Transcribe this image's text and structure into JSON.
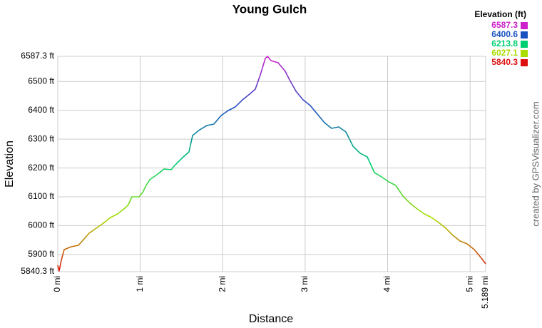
{
  "chart_data": {
    "type": "line",
    "title": "Young Gulch",
    "x_label": "Distance",
    "y_label": "Elevation",
    "credit": "created by GPSVisualizer.com",
    "legend_title": "Elevation (ft)",
    "color_scale": [
      {
        "value": 6587.3,
        "color": "#cc22cc"
      },
      {
        "value": 6400.6,
        "color": "#1a53c0"
      },
      {
        "value": 6213.8,
        "color": "#00d070"
      },
      {
        "value": 6027.1,
        "color": "#aadd00"
      },
      {
        "value": 5840.3,
        "color": "#dd1111"
      }
    ],
    "x": [
      0,
      0.017,
      0.043,
      0.078,
      0.164,
      0.251,
      0.32,
      0.381,
      0.467,
      0.554,
      0.64,
      0.726,
      0.813,
      0.856,
      0.899,
      0.986,
      1.029,
      1.072,
      1.116,
      1.202,
      1.289,
      1.375,
      1.418,
      1.505,
      1.591,
      1.635,
      1.721,
      1.808,
      1.894,
      1.981,
      2.067,
      2.153,
      2.24,
      2.326,
      2.396,
      2.456,
      2.517,
      2.543,
      2.586,
      2.672,
      2.759,
      2.802,
      2.889,
      2.975,
      3.062,
      3.148,
      3.234,
      3.321,
      3.407,
      3.494,
      3.58,
      3.667,
      3.753,
      3.84,
      3.926,
      4.013,
      4.099,
      4.186,
      4.272,
      4.359,
      4.445,
      4.532,
      4.618,
      4.705,
      4.791,
      4.878,
      4.964,
      5.051,
      5.137,
      5.189
    ],
    "series": [
      {
        "name": "Elevation",
        "values": [
          5862.6,
          5842.8,
          5879.9,
          5917.0,
          5926.9,
          5931.8,
          5954.1,
          5973.9,
          5991.2,
          6008.5,
          6028.3,
          6040.6,
          6060.4,
          6072.8,
          6100.0,
          6100.0,
          6114.8,
          6139.6,
          6159.4,
          6176.7,
          6196.5,
          6194.0,
          6208.8,
          6233.6,
          6255.8,
          6312.7,
          6332.5,
          6347.3,
          6352.3,
          6382.0,
          6399.3,
          6411.7,
          6436.4,
          6456.2,
          6473.5,
          6523.0,
          6579.8,
          6587.3,
          6572.4,
          6565.0,
          6535.3,
          6510.6,
          6466.1,
          6436.4,
          6416.6,
          6386.9,
          6357.2,
          6337.5,
          6342.4,
          6325.1,
          6275.6,
          6250.9,
          6238.5,
          6184.1,
          6169.3,
          6151.9,
          6139.6,
          6102.5,
          6077.7,
          6058.0,
          6040.6,
          6028.3,
          6011.0,
          5991.2,
          5966.4,
          5946.7,
          5936.8,
          5917.0,
          5887.3,
          5867.5
        ]
      }
    ],
    "xlim": [
      0,
      5.189
    ],
    "xticks": [
      {
        "value": 0,
        "label": "0 mi"
      },
      {
        "value": 1,
        "label": "1 mi"
      },
      {
        "value": 2,
        "label": "2 mi"
      },
      {
        "value": 3,
        "label": "3 mi"
      },
      {
        "value": 4,
        "label": "4 mi"
      },
      {
        "value": 5,
        "label": "5 mi"
      },
      {
        "value": 5.189,
        "label": "5.189 mi"
      }
    ],
    "ylim": [
      5840.3,
      6587.3
    ],
    "yticks": [
      {
        "value": 5840.3,
        "label": "5840.3 ft"
      },
      {
        "value": 5900,
        "label": "5900 ft"
      },
      {
        "value": 6000,
        "label": "6000 ft"
      },
      {
        "value": 6100,
        "label": "6100 ft"
      },
      {
        "value": 6200,
        "label": "6200 ft"
      },
      {
        "value": 6300,
        "label": "6300 ft"
      },
      {
        "value": 6400,
        "label": "6400 ft"
      },
      {
        "value": 6500,
        "label": "6500 ft"
      },
      {
        "value": 6587.3,
        "label": "6587.3 ft"
      }
    ],
    "grid": true
  }
}
